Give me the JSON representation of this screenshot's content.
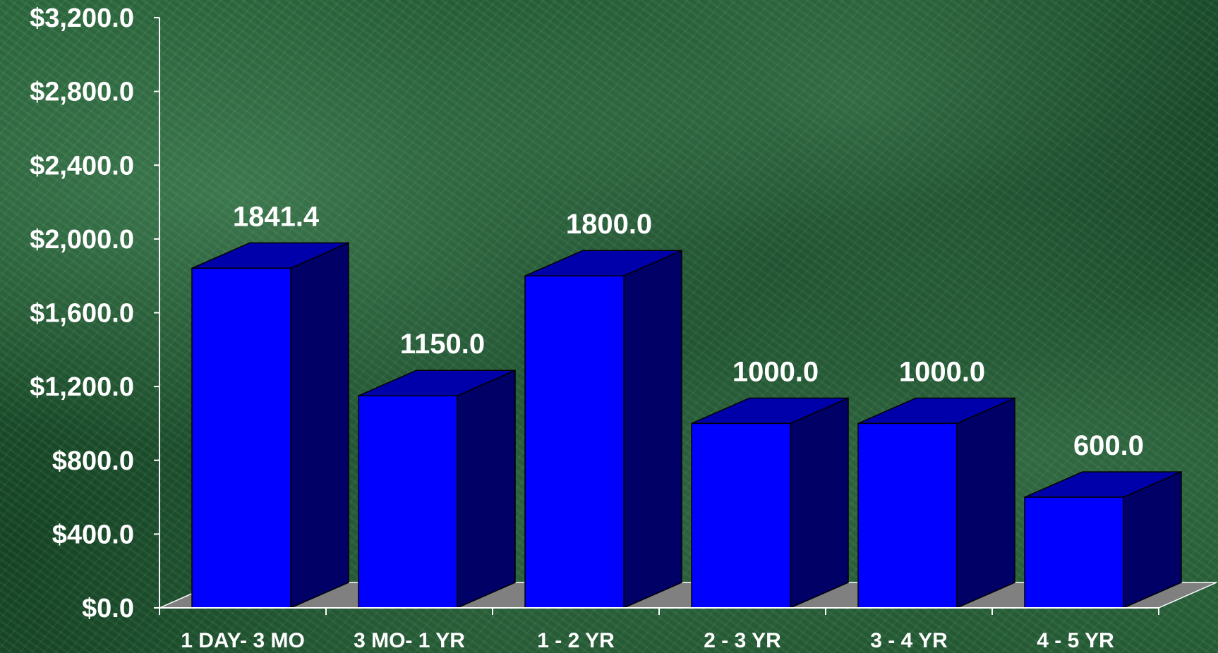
{
  "chart_data": {
    "type": "bar",
    "categories": [
      "1 DAY- 3 MO",
      "3 MO- 1 YR",
      "1 - 2 YR",
      "2 - 3 YR",
      "3 - 4 YR",
      "4 - 5 YR"
    ],
    "values": [
      1841.4,
      1150.0,
      1800.0,
      1000.0,
      1000.0,
      600.0
    ],
    "data_labels": [
      "1841.4",
      "1150.0",
      "1800.0",
      "1000.0",
      "1000.0",
      "600.0"
    ],
    "title": "",
    "xlabel": "",
    "ylabel": "",
    "ylim": [
      0,
      3200
    ],
    "yticks": [
      0,
      400,
      800,
      1200,
      1600,
      2000,
      2400,
      2800,
      3200
    ],
    "ytick_labels": [
      "$0.0",
      "$400.0",
      "$800.0",
      "$1,200.0",
      "$1,600.0",
      "$2,000.0",
      "$2,400.0",
      "$2,800.0",
      "$3,200.0"
    ],
    "grid": false,
    "legend": "none",
    "three_d": true,
    "colors": {
      "bar_front": "#0000ff",
      "bar_side": "#000066",
      "bar_top": "#0000aa",
      "floor": "#808080",
      "axis": "#ffffff",
      "text": "#ffffff"
    }
  }
}
